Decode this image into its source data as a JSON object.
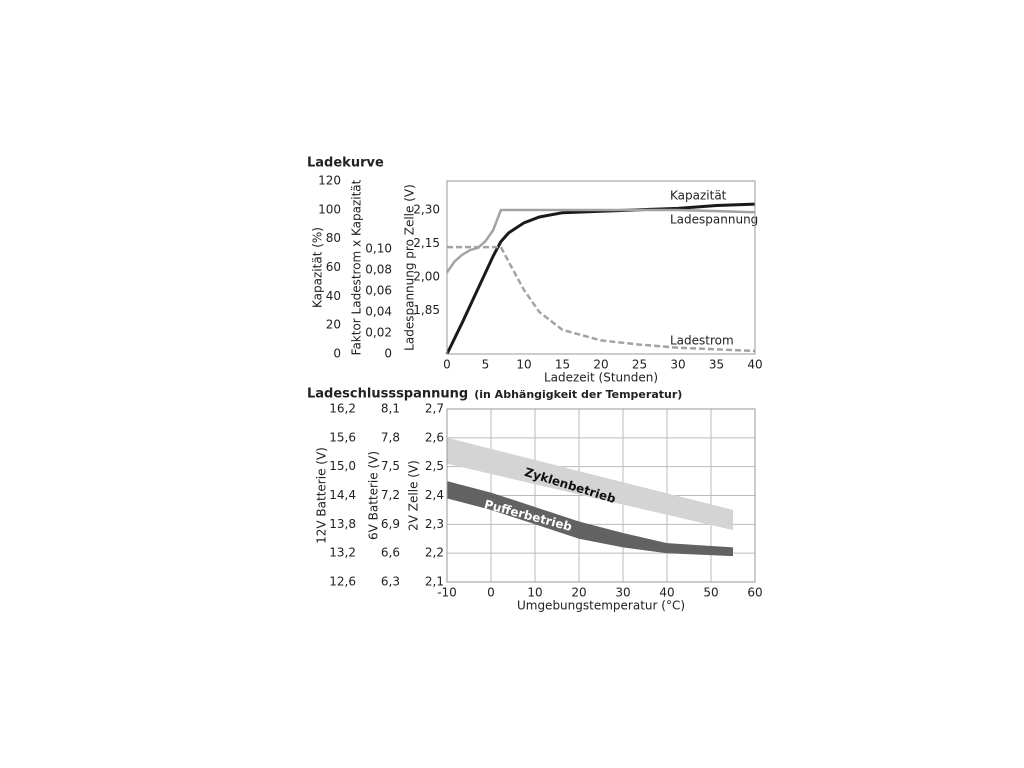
{
  "chart_data": [
    {
      "type": "line",
      "title": "Ladekurve",
      "xlabel": "Ladezeit (Stunden)",
      "xlim": [
        0,
        40
      ],
      "xticks": [
        0,
        5,
        10,
        15,
        20,
        25,
        30,
        35,
        40
      ],
      "ylabel": "Kapazität (%)",
      "ylim": [
        0,
        120
      ],
      "yticks": [
        0,
        20,
        40,
        60,
        80,
        100,
        120
      ],
      "y2label": "Faktor Ladestrom x Kapazität",
      "y2lim": [
        0,
        0.165
      ],
      "y2ticks": [
        0,
        {
          "value": 0.02,
          "label": "0,02"
        },
        {
          "value": 0.04,
          "label": "0,04"
        },
        {
          "value": 0.06,
          "label": "0,06"
        },
        {
          "value": 0.08,
          "label": "0,08"
        },
        {
          "value": 0.1,
          "label": "0,10"
        }
      ],
      "y3label": "Ladespannung pro Zelle (V)",
      "y3lim": [
        1.654,
        2.43
      ],
      "y3ticks": [
        {
          "value": 1.85,
          "label": "1,85"
        },
        {
          "value": 2.0,
          "label": "2,00"
        },
        {
          "value": 2.15,
          "label": "2,15"
        },
        {
          "value": 2.3,
          "label": "2,30"
        }
      ],
      "grid": false,
      "series": [
        {
          "name": "Kapazität",
          "color": "#1a1a1a",
          "style": "solid",
          "axis": "y",
          "x": [
            0,
            2,
            4,
            6,
            7,
            8,
            10,
            12,
            15,
            20,
            25,
            30,
            35,
            40
          ],
          "values": [
            0,
            22,
            45,
            68,
            78,
            84,
            91,
            95,
            98,
            99,
            100,
            101,
            103,
            104
          ]
        },
        {
          "name": "Ladespannung",
          "color": "#a3a3a3",
          "style": "solid",
          "axis": "y3",
          "x": [
            0,
            1,
            2,
            3,
            4,
            5,
            6,
            7,
            10,
            20,
            30,
            40
          ],
          "values": [
            2.02,
            2.07,
            2.1,
            2.12,
            2.13,
            2.16,
            2.21,
            2.3,
            2.3,
            2.3,
            2.3,
            2.29
          ]
        },
        {
          "name": "Ladestrom",
          "color": "#a3a3a3",
          "style": "dashed",
          "axis": "y2",
          "x": [
            0,
            7,
            8,
            10,
            12,
            15,
            20,
            25,
            30,
            40
          ],
          "values": [
            0.102,
            0.102,
            0.088,
            0.061,
            0.04,
            0.023,
            0.013,
            0.009,
            0.006,
            0.003
          ]
        }
      ]
    },
    {
      "type": "range-area",
      "title": "Ladeschlussspannung",
      "subtitle": "(in Abhängigkeit der Temperatur)",
      "xlabel": "Umgebungstemperatur (°C)",
      "xlim": [
        -10,
        60
      ],
      "xticks": [
        -10,
        0,
        10,
        20,
        30,
        40,
        50,
        60
      ],
      "ylabel": "2V Zelle (V)",
      "ylim": [
        2.1,
        2.7
      ],
      "yticks": [
        {
          "value": 2.1,
          "label": "2,1"
        },
        {
          "value": 2.2,
          "label": "2,2"
        },
        {
          "value": 2.3,
          "label": "2,3"
        },
        {
          "value": 2.4,
          "label": "2,4"
        },
        {
          "value": 2.5,
          "label": "2,5"
        },
        {
          "value": 2.6,
          "label": "2,6"
        },
        {
          "value": 2.7,
          "label": "2,7"
        }
      ],
      "y2label": "6V Batterie (V)",
      "y2lim": [
        6.3,
        8.1
      ],
      "y2ticks": [
        {
          "value": 6.3,
          "label": "6,3"
        },
        {
          "value": 6.6,
          "label": "6,6"
        },
        {
          "value": 6.9,
          "label": "6,9"
        },
        {
          "value": 7.2,
          "label": "7,2"
        },
        {
          "value": 7.5,
          "label": "7,5"
        },
        {
          "value": 7.8,
          "label": "7,8"
        },
        {
          "value": 8.1,
          "label": "8,1"
        }
      ],
      "y3label": "12V Batterie (V)",
      "y3lim": [
        12.6,
        16.2
      ],
      "y3ticks": [
        {
          "value": 12.6,
          "label": "12,6"
        },
        {
          "value": 13.2,
          "label": "13,2"
        },
        {
          "value": 13.8,
          "label": "13,8"
        },
        {
          "value": 14.4,
          "label": "14,4"
        },
        {
          "value": 15.0,
          "label": "15,0"
        },
        {
          "value": 15.6,
          "label": "15,6"
        },
        {
          "value": 16.2,
          "label": "16,2"
        }
      ],
      "grid": true,
      "series": [
        {
          "name": "Zyklenbetrieb",
          "color": "#d4d4d4",
          "label_color": "#111111",
          "x": [
            -10,
            55
          ],
          "low": [
            2.51,
            2.28
          ],
          "high": [
            2.6,
            2.35
          ]
        },
        {
          "name": "Pufferbetrieb",
          "color": "#626262",
          "label_color": "#ffffff",
          "x": [
            -10,
            0,
            10,
            20,
            30,
            40,
            55
          ],
          "low": [
            2.39,
            2.35,
            2.3,
            2.25,
            2.22,
            2.2,
            2.19
          ],
          "high": [
            2.45,
            2.41,
            2.36,
            2.31,
            2.27,
            2.235,
            2.22
          ]
        }
      ]
    }
  ]
}
